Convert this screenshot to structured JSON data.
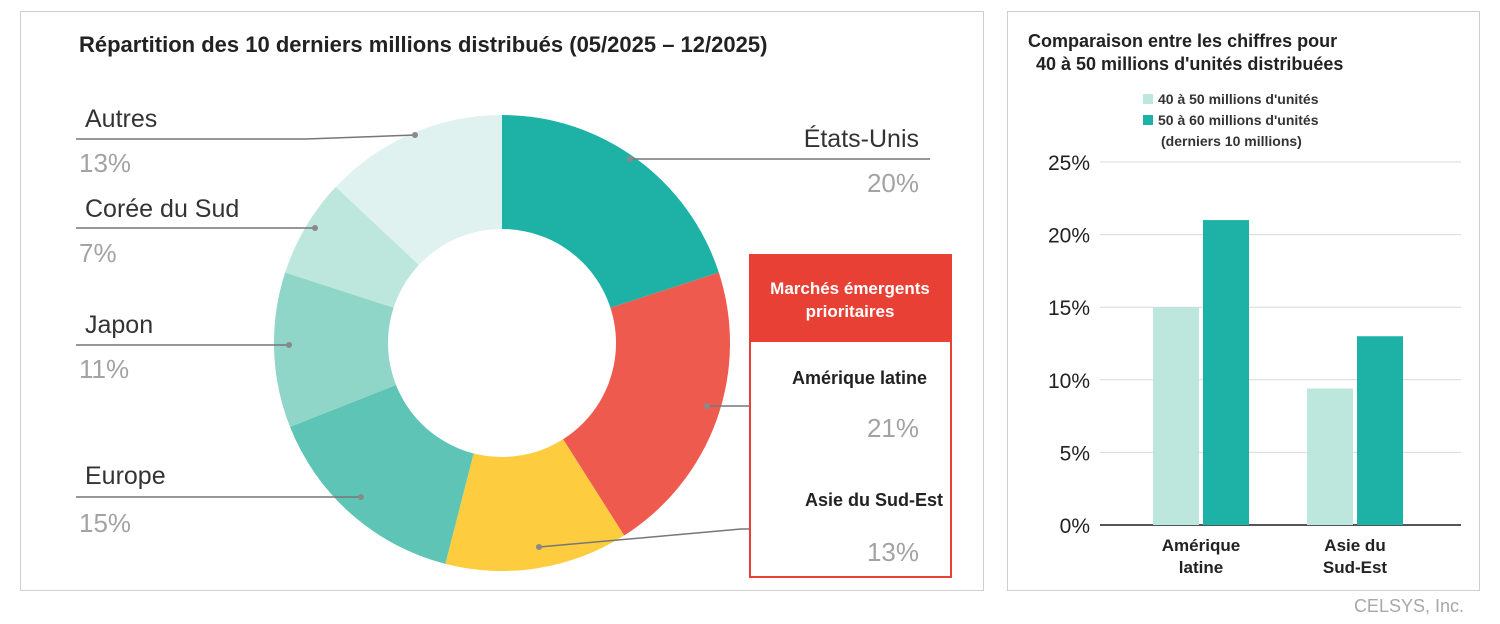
{
  "colors": {
    "etats_unis": "#1db2a5",
    "amerique_latine": "#ef5a4f",
    "asie_sud_est": "#fdcd3f",
    "europe": "#5dc4b6",
    "japon": "#8fd5c8",
    "coree_du_sud": "#bde6dd",
    "autres": "#dff2ef",
    "highlight": "#e94036",
    "bar_light": "#bde6dd",
    "bar_dark": "#1db2a5"
  },
  "chart_data": [
    {
      "type": "pie",
      "title": "Répartition des 10 derniers millions distribués (05/2025 – 12/2025)",
      "labels": [
        "États-Unis",
        "Amérique latine",
        "Asie du Sud-Est",
        "Europe",
        "Japon",
        "Corée du Sud",
        "Autres"
      ],
      "values": [
        20,
        21,
        13,
        15,
        11,
        7,
        13
      ],
      "value_labels": [
        "20%",
        "21%",
        "13%",
        "15%",
        "11%",
        "7%",
        "13%"
      ],
      "highlight_box": {
        "title": "Marchés émergents prioritaires",
        "items": [
          "Amérique latine",
          "Asie du Sud-Est"
        ]
      }
    },
    {
      "type": "bar",
      "title": "Comparaison entre les chiffres pour 40 à 50 millions d'unités distribuées",
      "categories": [
        "Amérique latine",
        "Asie du Sud-Est"
      ],
      "category_labels": [
        [
          "Amérique",
          "latine"
        ],
        [
          "Asie du",
          "Sud-Est"
        ]
      ],
      "series": [
        {
          "name": "40 à 50 millions d'unités",
          "values": [
            15,
            9.4
          ]
        },
        {
          "name": "50 à 60 millions d'unités (derniers 10 millions)",
          "values": [
            21,
            13
          ]
        }
      ],
      "ylim": [
        0,
        25
      ],
      "yticks": [
        "0%",
        "5%",
        "10%",
        "15%",
        "20%",
        "25%"
      ],
      "grid": true,
      "legend_position": "top"
    }
  ],
  "footer": "CELSYS, Inc."
}
